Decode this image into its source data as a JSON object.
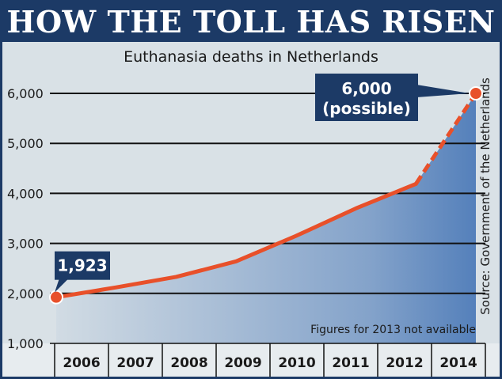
{
  "header": {
    "title": "HOW THE TOLL HAS RISEN"
  },
  "source": "Source: Government of the Netherlands",
  "note": "Figures for 2013 not available",
  "callouts": {
    "first": "1,923",
    "last_line1": "6,000",
    "last_line2": "(possible)"
  },
  "colors": {
    "navy": "#1c3a66",
    "line": "#e8502a",
    "area": "#3d6fb3",
    "background": "#d9e1e6"
  },
  "chart_data": {
    "type": "line",
    "title": "Euthanasia deaths in Netherlands",
    "xlabel": "",
    "ylabel": "",
    "categories": [
      "2006",
      "2007",
      "2008",
      "2009",
      "2010",
      "2011",
      "2012",
      "2014"
    ],
    "series": [
      {
        "values": [
          1923,
          2120,
          2330,
          2640,
          3150,
          3700,
          4190,
          6000
        ]
      }
    ],
    "projected_from_index": 6,
    "ylim": [
      1000,
      6000
    ],
    "yticks": [
      1000,
      2000,
      3000,
      4000,
      5000,
      6000
    ],
    "ytick_labels": [
      "1,000",
      "2,000",
      "3,000",
      "4,000",
      "5,000",
      "6,000"
    ],
    "grid": true,
    "legend": "none"
  }
}
